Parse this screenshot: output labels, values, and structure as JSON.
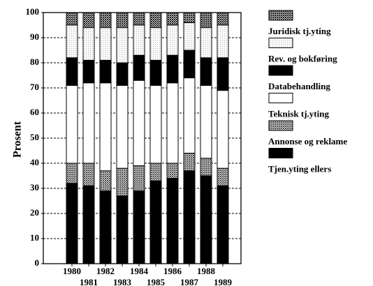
{
  "chart_data": {
    "type": "stacked-bar",
    "ylabel": "Prosent",
    "categories": [
      "1980",
      "1981",
      "1982",
      "1983",
      "1984",
      "1985",
      "1986",
      "1987",
      "1988",
      "1989"
    ],
    "series": [
      {
        "name": "Tjen.yting ellers",
        "color": "#000000",
        "pattern": "solid",
        "values": [
          32,
          31,
          29,
          27,
          29,
          33,
          34,
          37,
          35,
          31
        ]
      },
      {
        "name": "Annonse og reklame",
        "color": "#555555",
        "pattern": "hatch",
        "values": [
          8,
          9,
          8,
          11,
          10,
          7,
          6,
          7,
          7,
          7
        ]
      },
      {
        "name": "Teknisk tj.yting",
        "color": "#ffffff",
        "pattern": "solid",
        "values": [
          31,
          32,
          35,
          33,
          34,
          31,
          32,
          30,
          29,
          31
        ]
      },
      {
        "name": "Databehandling",
        "color": "#000000",
        "pattern": "solid",
        "values": [
          11,
          9,
          9,
          9,
          10,
          10,
          11,
          11,
          11,
          13
        ]
      },
      {
        "name": "Rev. og bokføring",
        "color": "#bbbbbb",
        "pattern": "dots",
        "values": [
          13,
          13,
          13,
          14,
          12,
          13,
          12,
          11,
          12,
          13
        ]
      },
      {
        "name": "Juridisk tj.yting",
        "color": "#222222",
        "pattern": "hatch",
        "values": [
          5,
          6,
          6,
          6,
          5,
          6,
          5,
          4,
          6,
          5
        ]
      }
    ],
    "ylim": [
      0,
      100
    ],
    "yticks": [
      0,
      10,
      20,
      30,
      40,
      50,
      60,
      70,
      80,
      90,
      100
    ],
    "grid": true,
    "legend": "right"
  }
}
